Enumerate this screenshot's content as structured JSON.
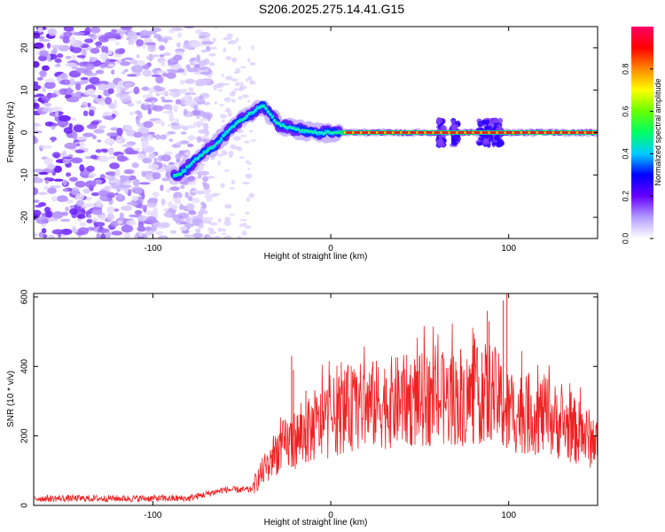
{
  "title": "S206.2025.275.14.41.G15",
  "colors": {
    "snr_line": "#ee2222",
    "axis": "#000000",
    "background": "#ffffff",
    "ridge_core": "#e8202a"
  },
  "chart_data": [
    {
      "type": "heatmap",
      "name": "spectrogram",
      "xlabel": "Height of straight line (km)",
      "ylabel": "Frequency (Hz)",
      "xlim": [
        -167,
        150
      ],
      "ylim": [
        -25,
        25
      ],
      "xticks": [
        -100,
        0,
        100
      ],
      "yticks": [
        -20,
        -10,
        0,
        10,
        20
      ],
      "colorbar": {
        "label": "Normalized spectral amplitude",
        "range": [
          0,
          1
        ],
        "ticks": [
          0.0,
          0.2,
          0.4,
          0.6,
          0.8
        ],
        "colormap": [
          "#ffffff",
          "#b39cff",
          "#6600ff",
          "#0000ff",
          "#00ccff",
          "#00ff66",
          "#66ff00",
          "#ffff00",
          "#ff8800",
          "#ff0000",
          "#ff0066"
        ]
      },
      "ridge": [
        {
          "x": -85,
          "f": -10
        },
        {
          "x": -75,
          "f": -6
        },
        {
          "x": -65,
          "f": -3
        },
        {
          "x": -55,
          "f": 1.5
        },
        {
          "x": -45,
          "f": 4.5
        },
        {
          "x": -38,
          "f": 6.5
        },
        {
          "x": -30,
          "f": 2
        },
        {
          "x": -20,
          "f": 0.8
        },
        {
          "x": -10,
          "f": 0
        },
        {
          "x": 0,
          "f": 0
        },
        {
          "x": 10,
          "f": 0
        },
        {
          "x": 150,
          "f": 0
        }
      ]
    },
    {
      "type": "line",
      "name": "snr",
      "xlabel": "Height of straight line (km)",
      "ylabel": "SNR (10 * v/v)",
      "xlim": [
        -167,
        150
      ],
      "ylim": [
        0,
        610
      ],
      "xticks": [
        -100,
        0,
        100
      ],
      "yticks": [
        0,
        200,
        400,
        600
      ],
      "series": [
        {
          "name": "SNR",
          "envelope": [
            {
              "x": -167,
              "y": 20
            },
            {
              "x": -80,
              "y": 20
            },
            {
              "x": -60,
              "y": 45
            },
            {
              "x": -45,
              "y": 45
            },
            {
              "x": -30,
              "y": 160
            },
            {
              "x": -10,
              "y": 220
            },
            {
              "x": 10,
              "y": 280
            },
            {
              "x": 40,
              "y": 300
            },
            {
              "x": 80,
              "y": 310
            },
            {
              "x": 90,
              "y": 330
            },
            {
              "x": 100,
              "y": 270
            },
            {
              "x": 120,
              "y": 260
            },
            {
              "x": 150,
              "y": 180
            }
          ],
          "peaks": [
            {
              "x": -22,
              "y": 430
            },
            {
              "x": -21,
              "y": 390
            },
            {
              "x": -14,
              "y": 330
            },
            {
              "x": 55,
              "y": 400
            },
            {
              "x": 73,
              "y": 450
            },
            {
              "x": 80,
              "y": 460
            },
            {
              "x": 85,
              "y": 440
            },
            {
              "x": 88,
              "y": 560
            },
            {
              "x": 89,
              "y": 530
            },
            {
              "x": 97,
              "y": 590
            },
            {
              "x": 99,
              "y": 610
            }
          ]
        }
      ]
    }
  ]
}
